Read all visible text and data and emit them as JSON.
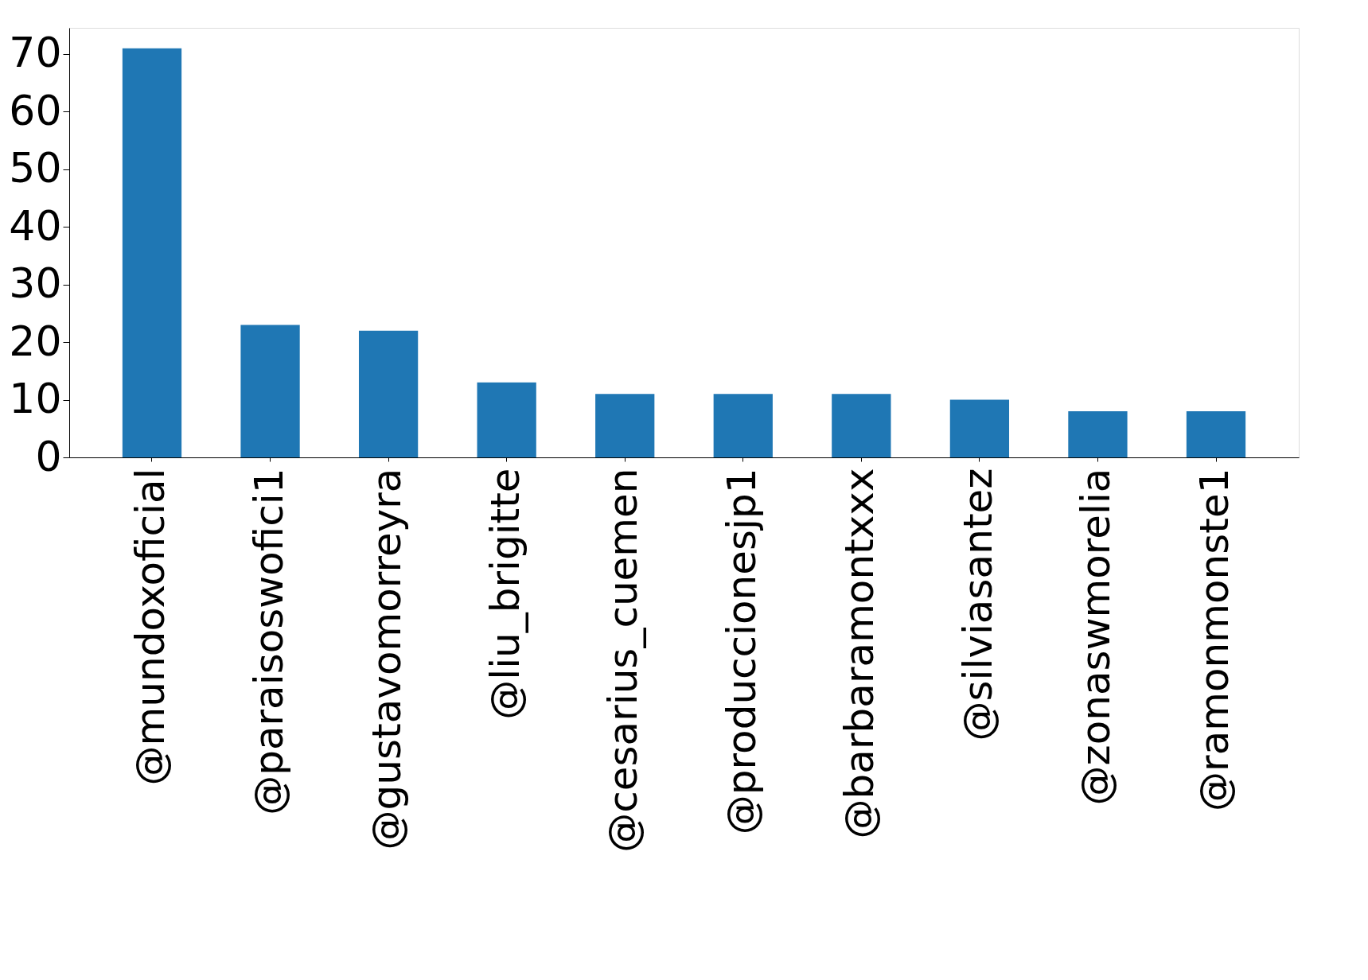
{
  "chart_data": {
    "type": "bar",
    "categories": [
      "@mundoxoficial",
      "@paraisoswofici1",
      "@gustavomorreyra",
      "@liu_brigitte",
      "@cesarius_cuemen",
      "@produccionesjp1",
      "@barbaramontxxx",
      "@silviasantez",
      "@zonaswmorelia",
      "@ramonmonste1"
    ],
    "values": [
      71,
      23,
      22,
      13,
      11,
      11,
      11,
      10,
      8,
      8
    ],
    "color": "#1f77b4",
    "ylim": [
      0,
      74.55
    ],
    "yticks": [
      0,
      10,
      20,
      30,
      40,
      50,
      60,
      70
    ],
    "grid": false
  }
}
